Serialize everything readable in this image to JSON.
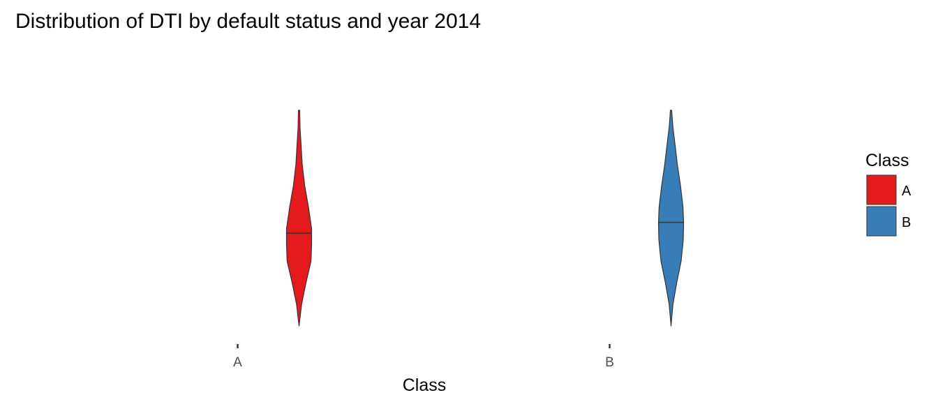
{
  "chart_data": {
    "type": "violin",
    "title": "Distribution of DTI by default status and year 2014",
    "xlabel": "Class",
    "ylabel": "",
    "categories": [
      "A",
      "B"
    ],
    "ylim": [
      0,
      1
    ],
    "y_ticks_shown": false,
    "grid": false,
    "legend": {
      "title": "Class",
      "placement": "right",
      "entries": [
        {
          "label": "A",
          "color": "#e41a1c"
        },
        {
          "label": "B",
          "color": "#377eb8"
        }
      ]
    },
    "series": [
      {
        "category": "A",
        "color": "#e41a1c",
        "median": 0.43,
        "density": [
          {
            "y": 0.0,
            "w": 0.0
          },
          {
            "y": 0.1,
            "w": 0.2
          },
          {
            "y": 0.2,
            "w": 0.55
          },
          {
            "y": 0.3,
            "w": 0.95
          },
          {
            "y": 0.38,
            "w": 1.0
          },
          {
            "y": 0.45,
            "w": 1.0
          },
          {
            "y": 0.55,
            "w": 0.75
          },
          {
            "y": 0.65,
            "w": 0.45
          },
          {
            "y": 0.75,
            "w": 0.25
          },
          {
            "y": 0.85,
            "w": 0.15
          },
          {
            "y": 0.92,
            "w": 0.08
          },
          {
            "y": 1.0,
            "w": 0.05
          }
        ]
      },
      {
        "category": "B",
        "color": "#377eb8",
        "median": 0.48,
        "density": [
          {
            "y": 0.0,
            "w": 0.0
          },
          {
            "y": 0.1,
            "w": 0.15
          },
          {
            "y": 0.2,
            "w": 0.45
          },
          {
            "y": 0.3,
            "w": 0.8
          },
          {
            "y": 0.4,
            "w": 0.97
          },
          {
            "y": 0.48,
            "w": 1.0
          },
          {
            "y": 0.55,
            "w": 0.95
          },
          {
            "y": 0.65,
            "w": 0.75
          },
          {
            "y": 0.75,
            "w": 0.5
          },
          {
            "y": 0.85,
            "w": 0.3
          },
          {
            "y": 0.92,
            "w": 0.15
          },
          {
            "y": 1.0,
            "w": 0.05
          }
        ]
      }
    ]
  }
}
